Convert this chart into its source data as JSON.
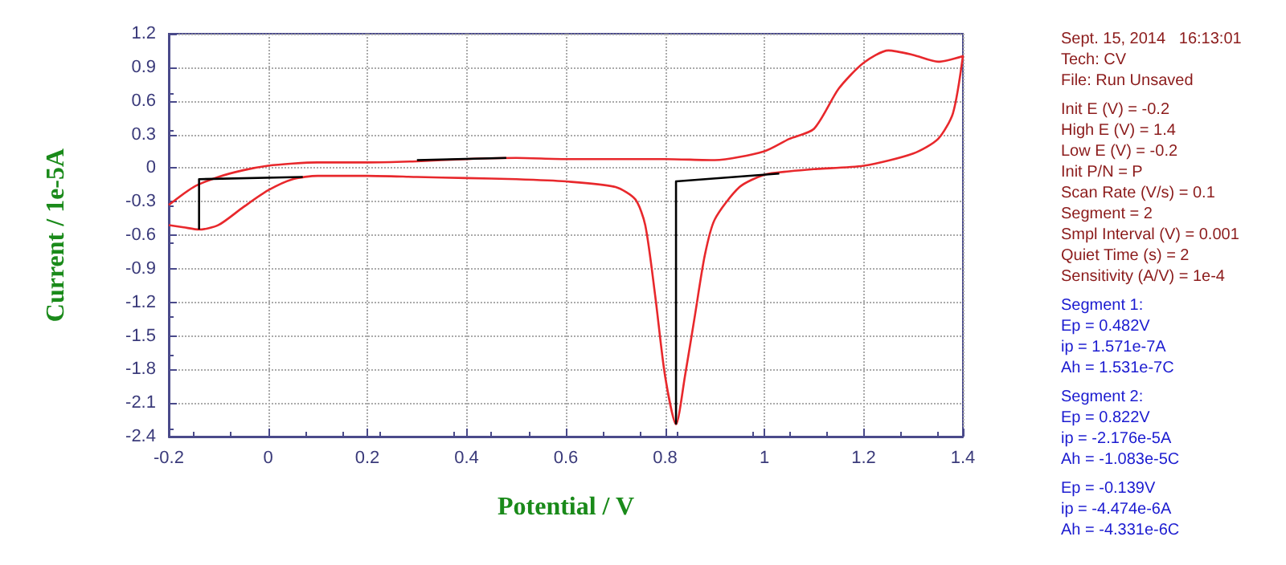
{
  "chart_data": {
    "type": "line",
    "xlabel": "Potential / V",
    "ylabel": "Current / 1e-5A",
    "xlim": [
      -0.2,
      1.4
    ],
    "xticks": [
      -0.2,
      0,
      0.2,
      0.4,
      0.6,
      0.8,
      1.0,
      1.2,
      1.4
    ],
    "ylim": [
      -2.4,
      1.2
    ],
    "yticks": [
      -2.4,
      -2.1,
      -1.8,
      -1.5,
      -1.2,
      -0.9,
      -0.6,
      -0.3,
      0,
      0.3,
      0.6,
      0.9,
      1.2
    ],
    "grid": true,
    "marker": "none",
    "line_style": "solid",
    "series": [
      {
        "color": "#e8282c",
        "x": [
          -0.2,
          -0.15,
          -0.1,
          -0.05,
          0,
          0.05,
          0.1,
          0.2,
          0.3,
          0.4,
          0.5,
          0.6,
          0.8,
          0.9,
          1.0,
          1.05,
          1.1,
          1.15,
          1.2,
          1.25,
          1.3,
          1.35,
          1.4,
          1.38,
          1.35,
          1.3,
          1.2,
          1.1,
          1.05,
          1.0,
          0.95,
          0.9,
          0.88,
          0.86,
          0.84,
          0.822,
          0.8,
          0.78,
          0.76,
          0.74,
          0.7,
          0.6,
          0.5,
          0.4,
          0.3,
          0.2,
          0.1,
          0.05,
          0,
          -0.05,
          -0.1,
          -0.139,
          -0.17,
          -0.2
        ],
        "values": [
          -0.33,
          -0.17,
          -0.08,
          -0.02,
          0.02,
          0.04,
          0.05,
          0.05,
          0.06,
          0.08,
          0.09,
          0.08,
          0.08,
          0.07,
          0.15,
          0.26,
          0.35,
          0.71,
          0.94,
          1.05,
          1.01,
          0.95,
          1.0,
          0.49,
          0.26,
          0.13,
          0.02,
          -0.01,
          -0.03,
          -0.06,
          -0.17,
          -0.46,
          -0.78,
          -1.32,
          -1.86,
          -2.29,
          -1.86,
          -1.14,
          -0.51,
          -0.28,
          -0.17,
          -0.12,
          -0.1,
          -0.09,
          -0.08,
          -0.07,
          -0.07,
          -0.1,
          -0.2,
          -0.35,
          -0.51,
          -0.55,
          -0.53,
          -0.51
        ]
      },
      {
        "color": "#000000",
        "x": [
          -0.139,
          -0.139,
          0.07
        ],
        "values": [
          -0.55,
          -0.1,
          -0.08
        ]
      },
      {
        "color": "#000000",
        "x": [
          0.3,
          0.48
        ],
        "values": [
          0.07,
          0.09
        ]
      },
      {
        "color": "#000000",
        "x": [
          0.822,
          0.822,
          1.03
        ],
        "values": [
          -2.29,
          -0.12,
          -0.05
        ]
      }
    ],
    "annotations": [
      "Sept. 15, 2014   16:13:01\nTech: CV\nFile: Run Unsaved",
      "Init E (V) = -0.2\nHigh E (V) = 1.4\nLow E (V) = -0.2\nInit P/N = P\nScan Rate (V/s) = 0.1\nSegment = 2\nSmpl Interval (V) = 0.001\nQuiet Time (s) = 2\nSensitivity (A/V) = 1e-4",
      "Segment 1:\nEp = 0.482V\nip = 1.571e-7A\nAh = 1.531e-7C",
      "Segment 2:\nEp = 0.822V\nip = -2.176e-5A\nAh = -1.083e-5C",
      "Ep = -0.139V\nip = -4.474e-6A\nAh = -4.331e-6C"
    ]
  }
}
